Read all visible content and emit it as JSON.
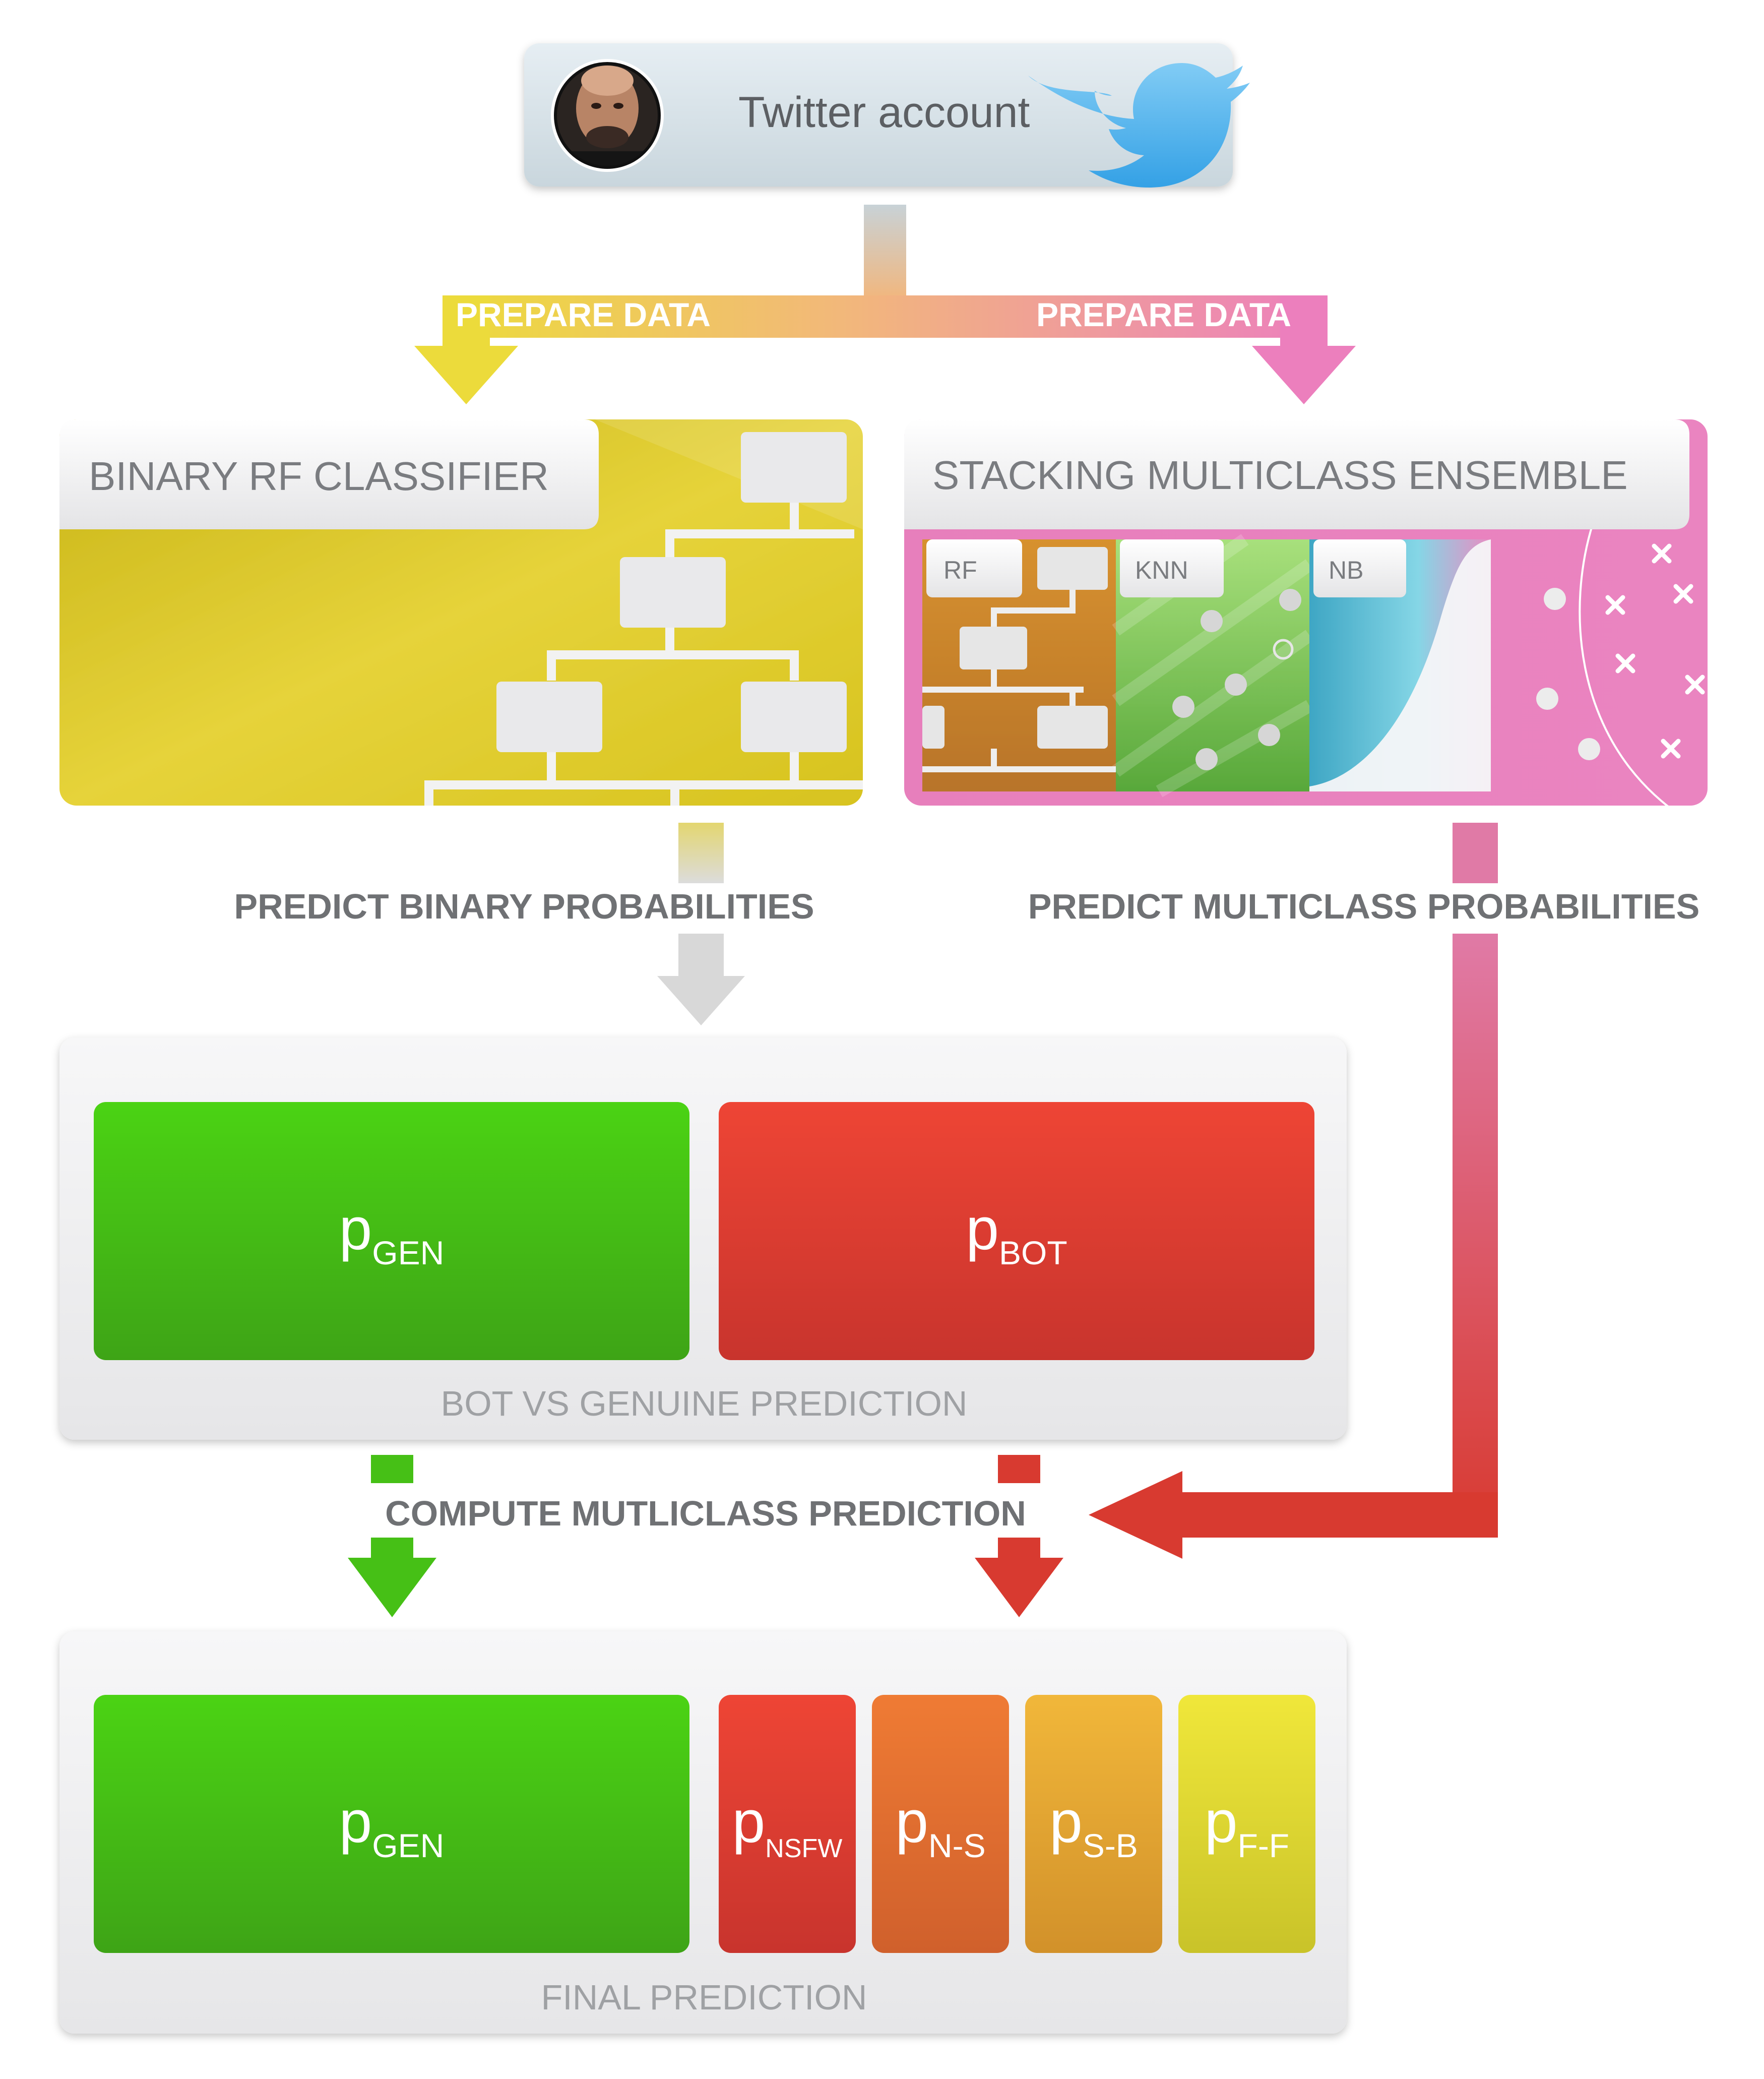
{
  "account": {
    "label": "Twitter account"
  },
  "prepare": {
    "left_label": "PREPARE DATA",
    "right_label": "PREPARE DATA"
  },
  "binary_classifier": {
    "title": "BINARY RF CLASSIFIER"
  },
  "ensemble": {
    "title": "STACKING MULTICLASS ENSEMBLE",
    "models": [
      {
        "label": "RF"
      },
      {
        "label": "KNN"
      },
      {
        "label": "NB"
      }
    ]
  },
  "steps": {
    "binary_prob": "PREDICT BINARY PROBABILITIES",
    "multiclass_prob": "PREDICT MULTICLASS PROBABILITIES",
    "compute": "COMPUTE MUTLICLASS PREDICTION"
  },
  "bot_vs_genuine": {
    "caption": "BOT VS GENUINE PREDICTION",
    "cells": [
      {
        "p": "p",
        "sub": "GEN",
        "color": "#44b514"
      },
      {
        "p": "p",
        "sub": "BOT",
        "color": "#d93a2e"
      }
    ]
  },
  "final": {
    "caption": "FINAL PREDICTION",
    "cells": [
      {
        "p": "p",
        "sub": "GEN",
        "color": "#44b514"
      },
      {
        "p": "p",
        "sub": "NSFW",
        "color": "#d83a2d"
      },
      {
        "p": "p",
        "sub": "N-S",
        "color": "#e56a2e"
      },
      {
        "p": "p",
        "sub": "S-B",
        "color": "#e8a02e"
      },
      {
        "p": "p",
        "sub": "F-F",
        "color": "#dcd62a"
      }
    ]
  },
  "colors": {
    "green": "#44b514",
    "red": "#d93a2e",
    "yellow": "#e4cf2c",
    "pink": "#ea7fbc",
    "twitter_blue": "#3ea8ec"
  }
}
